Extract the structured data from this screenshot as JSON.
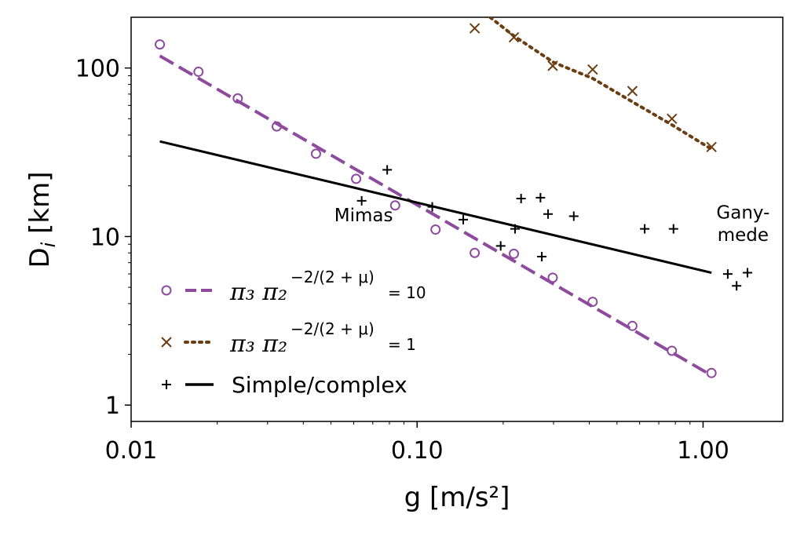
{
  "chart_data": {
    "type": "scatter",
    "xscale": "log",
    "yscale": "log",
    "xlabel": "g [m/s²]",
    "ylabel": "D_i [km]",
    "xlim": [
      0.01,
      1.9
    ],
    "ylim": [
      0.8,
      200
    ],
    "xticks": [
      0.01,
      0.1,
      1.0
    ],
    "xtick_labels": [
      "0.01",
      "0.10",
      "1.00"
    ],
    "yticks": [
      1,
      10,
      100
    ],
    "ytick_labels": [
      "1",
      "10",
      "100"
    ],
    "colors": {
      "purple": "#8e4b9e",
      "brown": "#6b3d12",
      "black": "#000000"
    },
    "series": [
      {
        "name": "π3 π2^(−2/(2+μ)) = 10",
        "marker": "circle",
        "color": "#8e4b9e",
        "x": [
          0.0126,
          0.0172,
          0.0236,
          0.0323,
          0.0443,
          0.0612,
          0.0838,
          0.116,
          0.159,
          0.218,
          0.298,
          0.411,
          0.566,
          0.778,
          1.07
        ],
        "y": [
          138,
          95,
          66,
          45,
          31,
          22,
          15.3,
          11.0,
          8.0,
          7.9,
          5.7,
          4.1,
          2.95,
          2.1,
          1.55
        ]
      },
      {
        "name": "π3 π2^(−2/(2+μ)) = 10",
        "line": "dashed",
        "color": "#8e4b9e",
        "x": [
          0.0126,
          1.07
        ],
        "y": [
          118,
          1.5
        ]
      },
      {
        "name": "π3 π2^(−2/(2+μ)) = 1",
        "marker": "x",
        "color": "#6b3d12",
        "x": [
          0.159,
          0.218,
          0.298,
          0.411,
          0.566,
          0.778,
          1.07
        ],
        "y": [
          172,
          152,
          103,
          98,
          73,
          50,
          34
        ]
      },
      {
        "name": "π3 π2^(−2/(2+μ)) = 1",
        "line": "dotted",
        "color": "#6b3d12",
        "x": [
          0.18,
          0.218,
          0.3,
          0.41,
          0.566,
          0.778,
          1.07
        ],
        "y": [
          200,
          155,
          108,
          87,
          63,
          46,
          33
        ]
      },
      {
        "name": "Simple/complex",
        "marker": "plus",
        "color": "#000000",
        "x": [
          0.064,
          0.0786,
          0.113,
          0.145,
          0.196,
          0.22,
          0.231,
          0.27,
          0.273,
          0.287,
          0.353,
          0.625,
          0.788,
          1.22,
          1.31,
          1.43
        ],
        "y": [
          16.3,
          24.9,
          15.0,
          12.6,
          8.8,
          11.1,
          16.8,
          17.0,
          7.6,
          13.6,
          13.2,
          11.1,
          11.1,
          6.0,
          5.1,
          6.1
        ]
      },
      {
        "name": "Simple/complex",
        "line": "solid",
        "color": "#000000",
        "x": [
          0.0126,
          1.07
        ],
        "y": [
          36.7,
          6.1
        ]
      }
    ],
    "annotations": [
      {
        "text": "Mimas",
        "x": 0.065,
        "y": 12.3
      },
      {
        "text": "Gany-",
        "x": 1.38,
        "y": 12.8
      },
      {
        "text": "mede",
        "x": 1.38,
        "y": 9.4
      }
    ],
    "legend": {
      "position": "lower-left",
      "entries": [
        {
          "label_math": "π₃ π₂",
          "label_sup": "−2/(2 + μ)",
          "label_tail": "= 10",
          "marker": "circle",
          "line": "dashed",
          "color": "#8e4b9e"
        },
        {
          "label_math": "π₃ π₂",
          "label_sup": "−2/(2 + μ)",
          "label_tail": "= 1",
          "marker": "x",
          "line": "dotted",
          "color": "#6b3d12"
        },
        {
          "label_text": "Simple/complex",
          "marker": "plus",
          "line": "solid",
          "color": "#000000"
        }
      ]
    },
    "grid": false
  }
}
